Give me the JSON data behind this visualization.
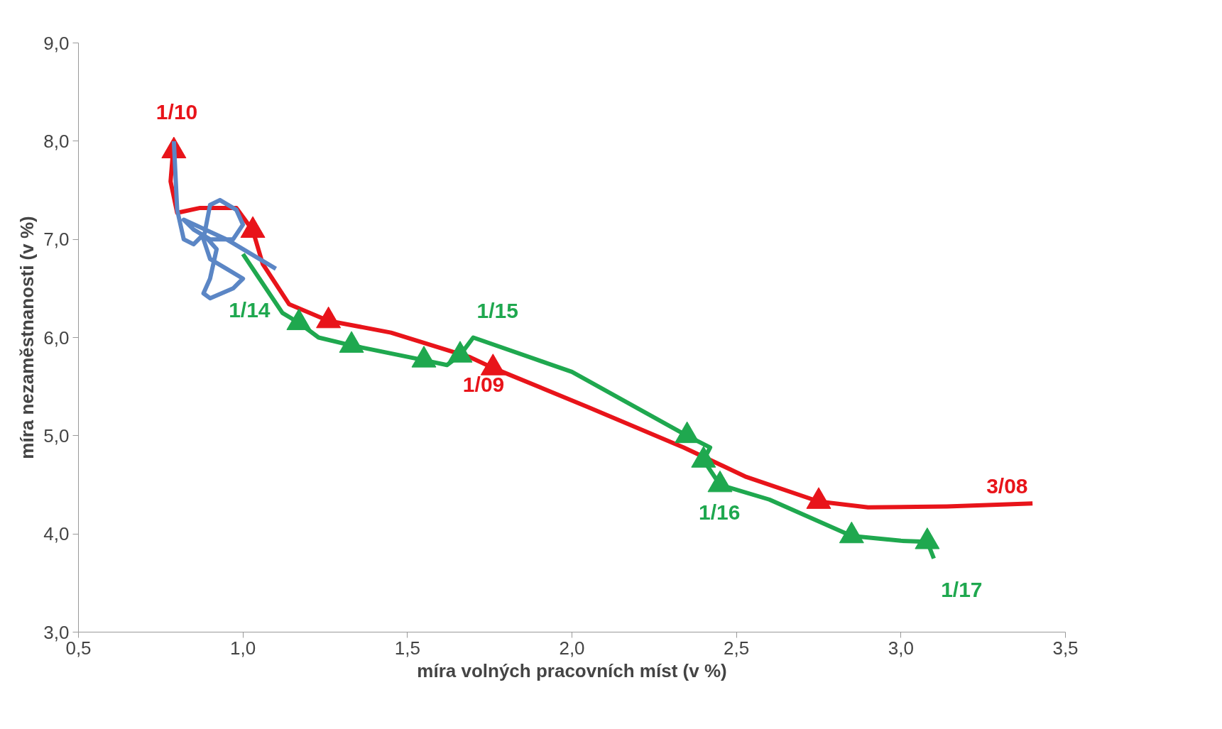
{
  "chart_data": {
    "type": "line",
    "xlabel": "míra volných pracovních míst (v %)",
    "ylabel": "míra nezaměstnanosti (v %)",
    "xlim": [
      0.5,
      3.5
    ],
    "ylim": [
      3.0,
      9.0
    ],
    "xticks": [
      {
        "value": 0.5,
        "label": "0,5"
      },
      {
        "value": 1.0,
        "label": "1,0"
      },
      {
        "value": 1.5,
        "label": "1,5"
      },
      {
        "value": 2.0,
        "label": "2,0"
      },
      {
        "value": 2.5,
        "label": "2,5"
      },
      {
        "value": 3.0,
        "label": "3,0"
      },
      {
        "value": 3.5,
        "label": "3,5"
      }
    ],
    "yticks": [
      {
        "value": 3.0,
        "label": "3,0"
      },
      {
        "value": 4.0,
        "label": "4,0"
      },
      {
        "value": 5.0,
        "label": "5,0"
      },
      {
        "value": 6.0,
        "label": "6,0"
      },
      {
        "value": 7.0,
        "label": "7,0"
      },
      {
        "value": 8.0,
        "label": "8,0"
      },
      {
        "value": 9.0,
        "label": "9,0"
      }
    ],
    "grid": false,
    "line_style": "solid",
    "series": [
      {
        "color": "#e8141a",
        "x": [
          3.4,
          3.14,
          2.9,
          2.75,
          2.53,
          2.34,
          2.05,
          1.76,
          1.69,
          1.45,
          1.26,
          1.14,
          1.06,
          1.03,
          0.98,
          0.87,
          0.8,
          0.78,
          0.79
        ],
        "values": [
          4.31,
          4.28,
          4.27,
          4.33,
          4.58,
          4.88,
          5.29,
          5.69,
          5.8,
          6.05,
          6.17,
          6.34,
          6.75,
          7.09,
          7.32,
          7.32,
          7.27,
          7.59,
          8.0
        ]
      },
      {
        "type": "scatter",
        "color": "#e8141a",
        "marker": "triangle",
        "x": [
          2.75,
          1.76,
          1.26,
          1.03,
          0.79
        ],
        "values": [
          4.33,
          5.69,
          6.17,
          7.09,
          7.9
        ]
      },
      {
        "color": "#5b86c5",
        "x": [
          0.79,
          0.8,
          0.82,
          0.85,
          0.88,
          0.92,
          0.9,
          0.88,
          0.9,
          0.97,
          1.0,
          0.95,
          0.9,
          0.88,
          0.9,
          0.93,
          0.98,
          1.0,
          0.97,
          0.9,
          0.85,
          0.82,
          0.95,
          1.1
        ],
        "values": [
          8.0,
          7.3,
          7.0,
          6.95,
          7.05,
          6.9,
          6.6,
          6.45,
          6.4,
          6.5,
          6.6,
          6.7,
          6.8,
          7.0,
          7.35,
          7.4,
          7.3,
          7.15,
          7.0,
          7.0,
          7.1,
          7.2,
          7.0,
          6.7
        ]
      },
      {
        "color": "#1fa84f",
        "x": [
          1.0,
          1.05,
          1.12,
          1.17,
          1.23,
          1.33,
          1.55,
          1.62,
          1.66,
          1.7,
          2.0,
          2.35,
          2.42,
          2.4,
          2.45,
          2.6,
          2.85,
          3.0,
          3.08,
          3.1
        ],
        "values": [
          6.85,
          6.6,
          6.25,
          6.15,
          6.0,
          5.92,
          5.77,
          5.72,
          5.82,
          6.0,
          5.65,
          5.0,
          4.88,
          4.75,
          4.5,
          4.35,
          3.98,
          3.93,
          3.92,
          3.75
        ]
      },
      {
        "type": "scatter",
        "color": "#1fa84f",
        "marker": "triangle",
        "x": [
          1.17,
          1.33,
          1.55,
          1.66,
          2.35,
          2.4,
          2.45,
          2.85,
          3.08
        ],
        "values": [
          6.15,
          5.92,
          5.77,
          5.82,
          5.0,
          4.75,
          4.5,
          3.98,
          3.92
        ]
      }
    ],
    "annotations": [
      {
        "text": "3/08",
        "x": 3.4,
        "y": 4.31
      },
      {
        "text": "1/09",
        "x": 1.69,
        "y": 5.8
      },
      {
        "text": "1/10",
        "x": 0.79,
        "y": 8.0
      },
      {
        "text": "1/14",
        "x": 1.0,
        "y": 6.85
      },
      {
        "text": "1/15",
        "x": 1.7,
        "y": 6.0
      },
      {
        "text": "1/16",
        "x": 2.45,
        "y": 4.5
      },
      {
        "text": "1/17",
        "x": 3.1,
        "y": 3.75
      }
    ]
  }
}
